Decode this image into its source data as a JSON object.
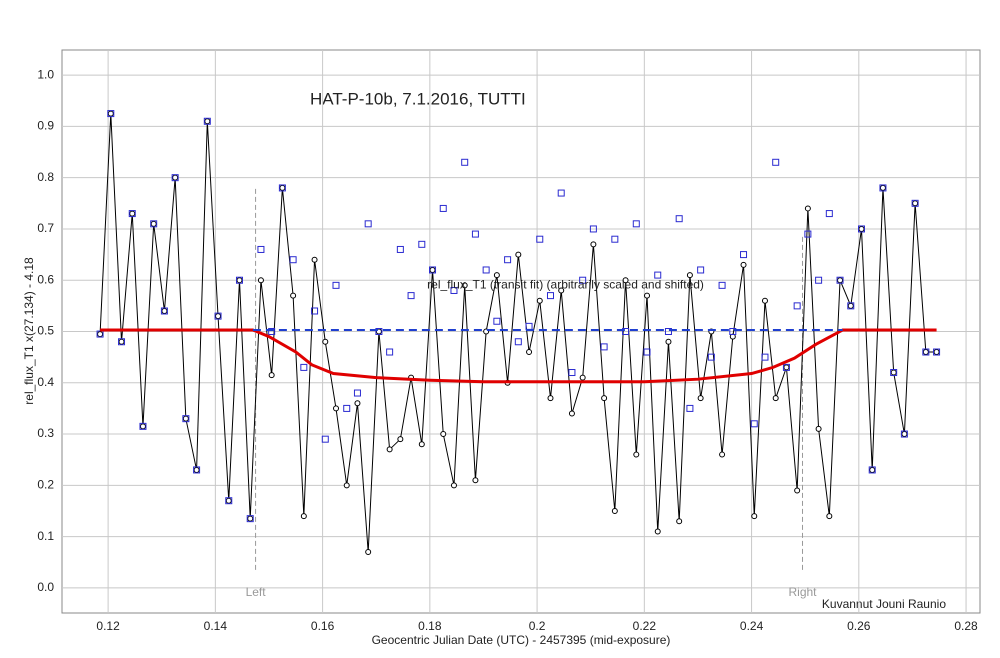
{
  "chart_data": {
    "type": "line",
    "title": "HAT-P-10b, 7.1.2016, TUTTI",
    "x_label": "Geocentric Julian Date (UTC) - 2457395 (mid-exposure)",
    "y_label": "rel_flux_T1 x(27.134) - 4.18",
    "credit": "Kuvannut Jouni Raunio",
    "xlim": [
      0.1114,
      0.2826
    ],
    "ylim": [
      -0.049,
      1.049
    ],
    "xticks": [
      0.12,
      0.14,
      0.16,
      0.18,
      0.2,
      0.22,
      0.24,
      0.26,
      0.28
    ],
    "yticks": [
      {
        "value": 0,
        "label": "0.0"
      },
      0.1,
      0.2,
      0.3,
      0.4,
      0.5,
      0.6,
      0.7,
      0.8,
      0.9,
      {
        "value": 1,
        "label": "1.0"
      }
    ],
    "grid": true,
    "x": [
      0.1185,
      0.1205,
      0.1225,
      0.1245,
      0.1265,
      0.1285,
      0.1305,
      0.1325,
      0.1345,
      0.1365,
      0.1385,
      0.1405,
      0.1425,
      0.1445,
      0.1465,
      0.1485,
      0.1505,
      0.1525,
      0.1545,
      0.1565,
      0.1585,
      0.1605,
      0.1625,
      0.1645,
      0.1665,
      0.1685,
      0.1705,
      0.1725,
      0.1745,
      0.1765,
      0.1785,
      0.1805,
      0.1825,
      0.1845,
      0.1865,
      0.1885,
      0.1905,
      0.1925,
      0.1945,
      0.1965,
      0.1985,
      0.2005,
      0.2025,
      0.2045,
      0.2065,
      0.2085,
      0.2105,
      0.2125,
      0.2145,
      0.2165,
      0.2185,
      0.2205,
      0.2225,
      0.2245,
      0.2265,
      0.2285,
      0.2305,
      0.2325,
      0.2345,
      0.2365,
      0.2385,
      0.2405,
      0.2425,
      0.2445,
      0.2465,
      0.2485,
      0.2505,
      0.2525,
      0.2545,
      0.2565,
      0.2585,
      0.2605,
      0.2625,
      0.2645,
      0.2665,
      0.2685,
      0.2705,
      0.2725,
      0.2745
    ],
    "series": [
      {
        "color": "#000000",
        "marker": "circle",
        "line": true,
        "values": [
          0.495,
          0.925,
          0.48,
          0.73,
          0.315,
          0.71,
          0.54,
          0.8,
          0.33,
          0.23,
          0.91,
          0.53,
          0.17,
          0.6,
          0.135,
          0.6,
          0.415,
          0.78,
          0.57,
          0.14,
          0.64,
          0.48,
          0.35,
          0.2,
          0.36,
          0.07,
          0.5,
          0.27,
          0.29,
          0.41,
          0.28,
          0.62,
          0.3,
          0.2,
          0.59,
          0.21,
          0.5,
          0.61,
          0.4,
          0.65,
          0.46,
          0.56,
          0.37,
          0.58,
          0.34,
          0.41,
          0.67,
          0.37,
          0.15,
          0.6,
          0.26,
          0.57,
          0.11,
          0.48,
          0.13,
          0.61,
          0.37,
          0.5,
          0.26,
          0.49,
          0.63,
          0.14,
          0.56,
          0.37,
          0.43,
          0.19,
          0.74,
          0.31,
          0.14,
          0.6,
          0.55,
          0.7,
          0.23,
          0.78,
          0.42,
          0.3,
          0.75,
          0.46,
          0.46
        ]
      },
      {
        "color": "#2a2ad0",
        "marker": "square",
        "line": false,
        "values": [
          0.495,
          0.925,
          0.48,
          0.73,
          0.315,
          0.71,
          0.54,
          0.8,
          0.33,
          0.23,
          0.91,
          0.53,
          0.17,
          0.6,
          0.135,
          0.66,
          0.5,
          0.78,
          0.64,
          0.43,
          0.54,
          0.29,
          0.59,
          0.35,
          0.38,
          0.71,
          0.5,
          0.46,
          0.66,
          0.57,
          0.67,
          0.62,
          0.74,
          0.58,
          0.83,
          0.69,
          0.62,
          0.52,
          0.64,
          0.48,
          0.51,
          0.68,
          0.57,
          0.77,
          0.42,
          0.6,
          0.7,
          0.47,
          0.68,
          0.5,
          0.71,
          0.46,
          0.61,
          0.5,
          0.72,
          0.35,
          0.62,
          0.45,
          0.59,
          0.5,
          0.65,
          0.32,
          0.45,
          0.83,
          0.43,
          0.55,
          0.69,
          0.6,
          0.73,
          0.6,
          0.55,
          0.7,
          0.23,
          0.78,
          0.42,
          0.3,
          0.75,
          0.46,
          0.46
        ]
      },
      {
        "name": "rel_flux_T1 (transit fit) (arbitrarily scaled and shifted)",
        "color": "#e00000",
        "marker": "none",
        "line": true,
        "width": 3,
        "x": [
          0.1185,
          0.147,
          0.15,
          0.155,
          0.158,
          0.162,
          0.17,
          0.18,
          0.19,
          0.22,
          0.23,
          0.24,
          0.244,
          0.248,
          0.252,
          0.257,
          0.2745
        ],
        "values": [
          0.503,
          0.503,
          0.49,
          0.46,
          0.435,
          0.418,
          0.41,
          0.405,
          0.402,
          0.402,
          0.407,
          0.418,
          0.43,
          0.448,
          0.475,
          0.503,
          0.503
        ]
      },
      {
        "color": "#1f3fd0",
        "marker": "none",
        "line": true,
        "dash": true,
        "width": 2,
        "x": [
          0.147,
          0.257
        ],
        "values": [
          0.503,
          0.503
        ]
      }
    ],
    "markers": [
      {
        "label": "Left",
        "x": 0.1475,
        "range": [
          0.035,
          0.78
        ]
      },
      {
        "label": "Right",
        "x": 0.2495,
        "range": [
          0.035,
          0.69
        ]
      }
    ]
  }
}
